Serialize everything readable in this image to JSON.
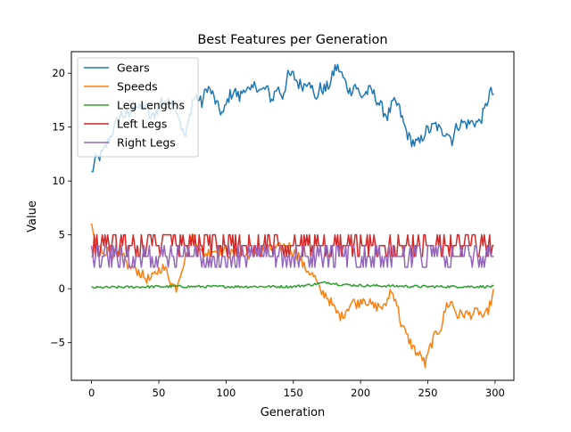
{
  "chart_data": {
    "type": "line",
    "title": "Best Features per Generation",
    "xlabel": "Generation",
    "ylabel": "Value",
    "xlim": [
      -15,
      314
    ],
    "ylim": [
      -8.5,
      22
    ],
    "x_ticks": [
      0,
      50,
      100,
      150,
      200,
      250,
      300
    ],
    "y_ticks": [
      -5,
      0,
      5,
      10,
      15,
      20
    ],
    "grid": false,
    "legend_position": "upper left",
    "x_range": [
      0,
      299
    ],
    "series": [
      {
        "name": "Gears",
        "color": "#1f77b4",
        "keypoints": [
          [
            0,
            10.7
          ],
          [
            3,
            11.9
          ],
          [
            8,
            12.5
          ],
          [
            12,
            13.6
          ],
          [
            18,
            15.2
          ],
          [
            22,
            16.2
          ],
          [
            28,
            16.0
          ],
          [
            32,
            17.3
          ],
          [
            36,
            16.6
          ],
          [
            40,
            17.1
          ],
          [
            44,
            15.7
          ],
          [
            48,
            16.4
          ],
          [
            52,
            17.5
          ],
          [
            56,
            16.9
          ],
          [
            60,
            17.8
          ],
          [
            64,
            16.5
          ],
          [
            68,
            14.5
          ],
          [
            70,
            14.1
          ],
          [
            73,
            16.0
          ],
          [
            75,
            17.5
          ],
          [
            78,
            17.8
          ],
          [
            82,
            17.2
          ],
          [
            86,
            18.8
          ],
          [
            90,
            18.0
          ],
          [
            94,
            16.8
          ],
          [
            98,
            16.2
          ],
          [
            102,
            17.8
          ],
          [
            106,
            18.4
          ],
          [
            110,
            17.7
          ],
          [
            114,
            18.8
          ],
          [
            118,
            18.1
          ],
          [
            122,
            19.0
          ],
          [
            126,
            18.3
          ],
          [
            130,
            18.6
          ],
          [
            134,
            17.5
          ],
          [
            138,
            18.7
          ],
          [
            142,
            17.9
          ],
          [
            146,
            19.7
          ],
          [
            150,
            19.8
          ],
          [
            154,
            19.0
          ],
          [
            158,
            18.9
          ],
          [
            162,
            19.6
          ],
          [
            166,
            17.5
          ],
          [
            170,
            18.6
          ],
          [
            174,
            18.5
          ],
          [
            178,
            19.2
          ],
          [
            181,
            20.5
          ],
          [
            184,
            20.4
          ],
          [
            188,
            19.3
          ],
          [
            192,
            18.3
          ],
          [
            196,
            19.0
          ],
          [
            200,
            17.8
          ],
          [
            204,
            18.2
          ],
          [
            208,
            18.4
          ],
          [
            212,
            17.6
          ],
          [
            216,
            16.7
          ],
          [
            220,
            16.0
          ],
          [
            224,
            17.2
          ],
          [
            228,
            17.0
          ],
          [
            232,
            15.3
          ],
          [
            236,
            14.0
          ],
          [
            240,
            13.5
          ],
          [
            244,
            13.5
          ],
          [
            248,
            14.6
          ],
          [
            252,
            14.8
          ],
          [
            256,
            15.2
          ],
          [
            260,
            14.5
          ],
          [
            264,
            14.7
          ],
          [
            268,
            13.8
          ],
          [
            272,
            15.2
          ],
          [
            276,
            15.4
          ],
          [
            280,
            15.3
          ],
          [
            284,
            15.5
          ],
          [
            288,
            15.4
          ],
          [
            292,
            16.4
          ],
          [
            296,
            18.2
          ],
          [
            299,
            18.1
          ]
        ],
        "noise": 0.6
      },
      {
        "name": "Speeds",
        "color": "#ff7f0e",
        "keypoints": [
          [
            0,
            5.6
          ],
          [
            4,
            4.0
          ],
          [
            8,
            3.5
          ],
          [
            12,
            3.5
          ],
          [
            16,
            3.2
          ],
          [
            20,
            3.0
          ],
          [
            24,
            2.8
          ],
          [
            28,
            2.0
          ],
          [
            32,
            1.9
          ],
          [
            36,
            1.5
          ],
          [
            40,
            1.0
          ],
          [
            44,
            0.8
          ],
          [
            48,
            1.5
          ],
          [
            52,
            2.0
          ],
          [
            56,
            1.6
          ],
          [
            60,
            0.4
          ],
          [
            63,
            0.1
          ],
          [
            66,
            1.5
          ],
          [
            70,
            3.0
          ],
          [
            74,
            5.0
          ],
          [
            78,
            4.5
          ],
          [
            82,
            3.2
          ],
          [
            86,
            3.3
          ],
          [
            90,
            3.6
          ],
          [
            94,
            3.5
          ],
          [
            98,
            3.5
          ],
          [
            102,
            3.3
          ],
          [
            106,
            3.2
          ],
          [
            110,
            3.4
          ],
          [
            114,
            3.0
          ],
          [
            118,
            3.3
          ],
          [
            122,
            3.4
          ],
          [
            126,
            3.5
          ],
          [
            130,
            3.6
          ],
          [
            134,
            3.7
          ],
          [
            138,
            3.7
          ],
          [
            142,
            3.9
          ],
          [
            146,
            4.1
          ],
          [
            150,
            3.4
          ],
          [
            154,
            3.1
          ],
          [
            158,
            2.0
          ],
          [
            162,
            1.6
          ],
          [
            166,
            1.0
          ],
          [
            170,
            -0.3
          ],
          [
            174,
            -0.5
          ],
          [
            178,
            -1.3
          ],
          [
            182,
            -2.2
          ],
          [
            186,
            -2.6
          ],
          [
            190,
            -1.8
          ],
          [
            194,
            -1.2
          ],
          [
            198,
            -1.4
          ],
          [
            202,
            -0.8
          ],
          [
            206,
            -1.3
          ],
          [
            210,
            -1.7
          ],
          [
            214,
            -1.6
          ],
          [
            218,
            -1.8
          ],
          [
            222,
            -0.2
          ],
          [
            226,
            -0.8
          ],
          [
            230,
            -3.2
          ],
          [
            234,
            -4.3
          ],
          [
            238,
            -5.2
          ],
          [
            242,
            -6.0
          ],
          [
            246,
            -6.4
          ],
          [
            248,
            -7.1
          ],
          [
            252,
            -5.3
          ],
          [
            256,
            -4.2
          ],
          [
            260,
            -3.5
          ],
          [
            264,
            -1.5
          ],
          [
            268,
            -1.3
          ],
          [
            272,
            -2.5
          ],
          [
            276,
            -2.3
          ],
          [
            280,
            -2.4
          ],
          [
            284,
            -2.3
          ],
          [
            288,
            -2.1
          ],
          [
            292,
            -2.8
          ],
          [
            296,
            -1.6
          ],
          [
            299,
            -0.3
          ]
        ],
        "noise": 0.5
      },
      {
        "name": "Leg Lengths",
        "color": "#2ca02c",
        "keypoints": [
          [
            0,
            0.1
          ],
          [
            50,
            0.2
          ],
          [
            100,
            0.2
          ],
          [
            150,
            0.2
          ],
          [
            165,
            0.4
          ],
          [
            175,
            0.6
          ],
          [
            185,
            0.4
          ],
          [
            200,
            0.3
          ],
          [
            250,
            0.2
          ],
          [
            299,
            0.2
          ]
        ],
        "noise": 0.12
      },
      {
        "name": "Left Legs",
        "color": "#d62728",
        "levels": [
          3,
          4,
          5
        ],
        "keypoints": [
          [
            0,
            4
          ],
          [
            299,
            4
          ]
        ]
      },
      {
        "name": "Right Legs",
        "color": "#9467bd",
        "levels": [
          2,
          3,
          4
        ],
        "keypoints": [
          [
            0,
            3
          ],
          [
            299,
            3
          ]
        ]
      }
    ]
  }
}
